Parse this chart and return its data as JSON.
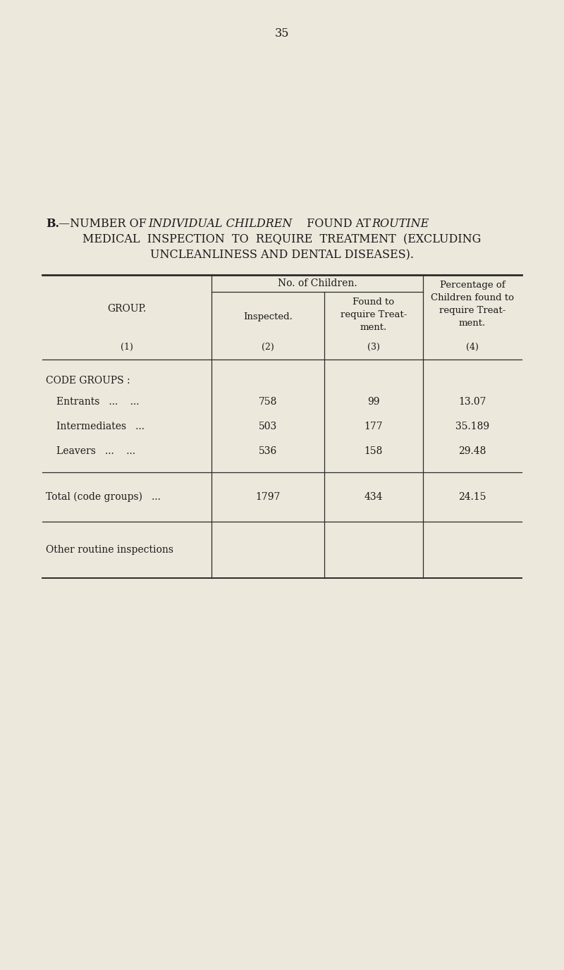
{
  "page_number": "35",
  "background_color": "#ede8dc",
  "title_bold": "B.",
  "title_line2": "MEDICAL  INSPECTION  TO  REQUIRE  TREATMENT  (EXCLUDING",
  "title_line3": "UNCLEANLINESS AND DENTAL DISEASES).",
  "col_header_no_children": "No. of Children.",
  "col_header_inspected": "Inspected.",
  "col_header_found": "Found to\nrequire Treat-\nment.",
  "col_header_percentage": "Percentage of\nChildren found to\nrequire Treat-\nment.",
  "col_numbers": "(1)",
  "col_numbers2": "(2)",
  "col_numbers3": "(3)",
  "col_numbers4": "(4)",
  "section_label": "CODE GROUPS :",
  "rows": [
    {
      "group": "Entrants   ...    ...",
      "inspected": "758",
      "found": "99",
      "pct": "13.07"
    },
    {
      "group": "Intermediates   ...",
      "inspected": "503",
      "found": "177",
      "pct": "35.189"
    },
    {
      "group": "Leavers   ...    ...",
      "inspected": "536",
      "found": "158",
      "pct": "29.48"
    }
  ],
  "total_row": {
    "group": "Total (code groups)   ...",
    "inspected": "1797",
    "found": "434",
    "pct": "24.15"
  },
  "last_row": {
    "group": "Other routine inspections",
    "inspected": "",
    "found": "",
    "pct": ""
  },
  "text_color": "#1a1a1a",
  "line_color": "#2a2a2a",
  "font_size_title": 11.5,
  "font_size_table": 10.0,
  "font_size_page": 11.5
}
